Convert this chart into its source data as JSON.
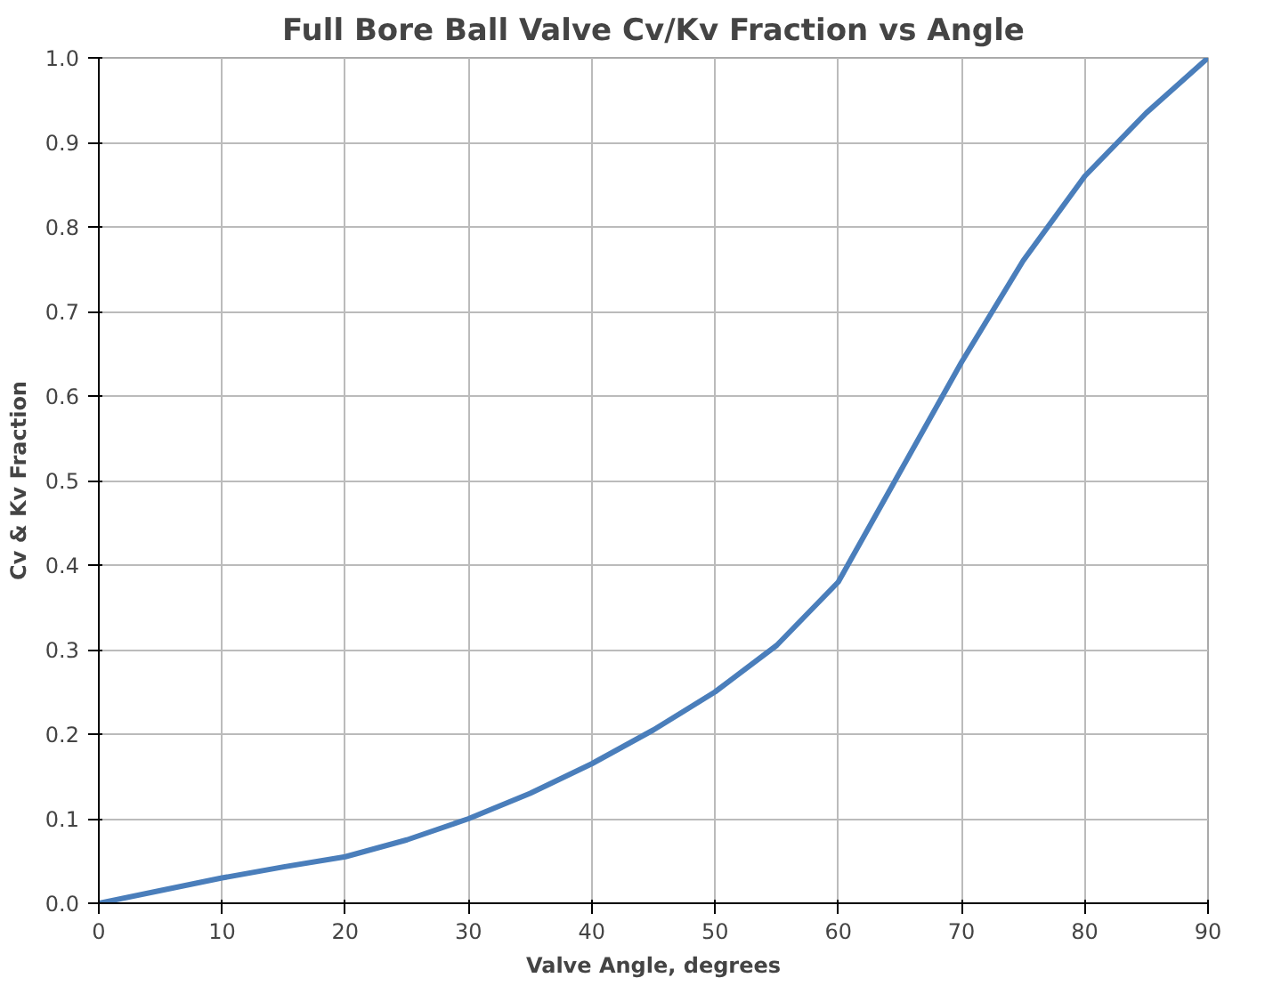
{
  "chart_data": {
    "type": "line",
    "title": "Full Bore Ball Valve Cv/Kv Fraction vs Angle",
    "xlabel": "Valve Angle, degrees",
    "ylabel": "Cv & Kv Fraction",
    "x": [
      0,
      5,
      10,
      15,
      20,
      25,
      30,
      35,
      40,
      45,
      50,
      55,
      60,
      65,
      70,
      75,
      80,
      85,
      90
    ],
    "series": [
      {
        "color": "#4a7ebb",
        "values": [
          0.0,
          0.015,
          0.03,
          0.043,
          0.055,
          0.075,
          0.1,
          0.13,
          0.165,
          0.205,
          0.25,
          0.305,
          0.38,
          0.51,
          0.64,
          0.76,
          0.86,
          0.935,
          1.0
        ]
      }
    ],
    "xlim": [
      0,
      90
    ],
    "xticks": [
      0,
      10,
      20,
      30,
      40,
      50,
      60,
      70,
      80,
      90
    ],
    "ylim": [
      0,
      1.0
    ],
    "yticks": [
      {
        "value": 0,
        "label": "0.0"
      },
      {
        "value": 0.1,
        "label": "0.1"
      },
      {
        "value": 0.2,
        "label": "0.2"
      },
      {
        "value": 0.3,
        "label": "0.3"
      },
      {
        "value": 0.4,
        "label": "0.4"
      },
      {
        "value": 0.5,
        "label": "0.5"
      },
      {
        "value": 0.6,
        "label": "0.6"
      },
      {
        "value": 0.7,
        "label": "0.7"
      },
      {
        "value": 0.8,
        "label": "0.8"
      },
      {
        "value": 0.9,
        "label": "0.9"
      },
      {
        "value": 1.0,
        "label": "1.0"
      }
    ],
    "grid": true,
    "line_style": "solid"
  }
}
